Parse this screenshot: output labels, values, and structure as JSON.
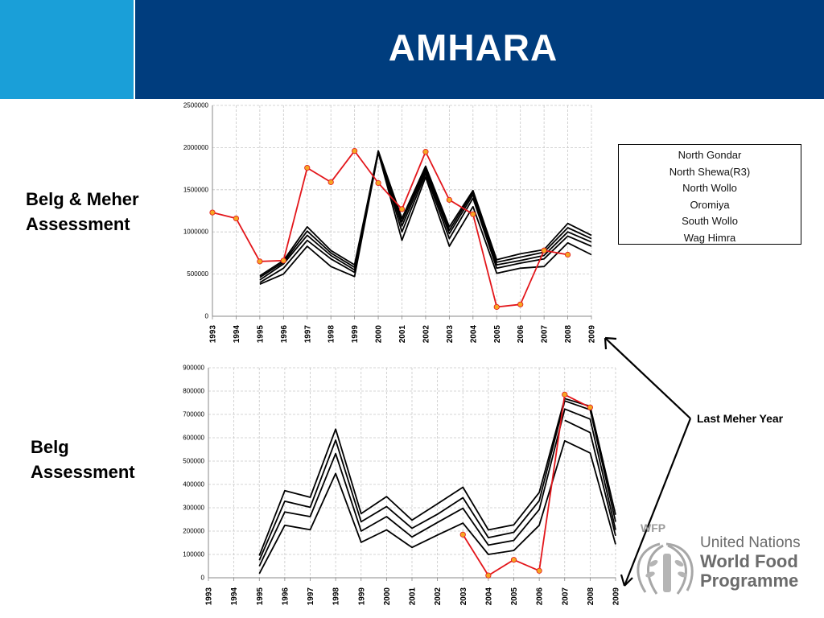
{
  "slide": {
    "title": "AMHARA",
    "label_top": [
      "Belg & Meher",
      "Assessment"
    ],
    "label_bottom": [
      "Belg",
      "Assessment"
    ],
    "annotation": "Last Meher Year",
    "legend": [
      "North Gondar",
      "North Shewa(R3)",
      "North Wollo",
      "Oromiya",
      "South Wollo",
      "Wag Himra"
    ],
    "logo": {
      "tag": "WFP",
      "line1": "United Nations",
      "line2": "World Food",
      "line3": "Programme"
    },
    "colors": {
      "header_light": "#1a9fd8",
      "header_dark": "#003d7e",
      "assessment_line": "#e3161b",
      "marker_fill": "#f6a623",
      "series_line": "#000000"
    }
  },
  "chart_data": [
    {
      "type": "line",
      "x": [
        1993,
        1994,
        1995,
        1996,
        1997,
        1998,
        1999,
        2000,
        2001,
        2002,
        2003,
        2004,
        2005,
        2006,
        2007,
        2008,
        2009
      ],
      "y_ticks": [
        0,
        500000,
        1000000,
        1500000,
        2000000,
        2500000
      ],
      "ylim": [
        0,
        2500000
      ],
      "series": [
        {
          "values": [
            null,
            null,
            480000,
            660000,
            1060000,
            780000,
            610000,
            1960000,
            1160000,
            1780000,
            1060000,
            1490000,
            670000,
            740000,
            790000,
            1100000,
            960000
          ]
        },
        {
          "values": [
            null,
            null,
            460000,
            640000,
            1010000,
            750000,
            580000,
            1960000,
            1120000,
            1750000,
            1020000,
            1470000,
            640000,
            700000,
            760000,
            1050000,
            920000
          ]
        },
        {
          "values": [
            null,
            null,
            430000,
            620000,
            960000,
            720000,
            550000,
            1950000,
            1070000,
            1720000,
            980000,
            1440000,
            610000,
            660000,
            720000,
            1000000,
            880000
          ]
        },
        {
          "values": [
            null,
            null,
            400000,
            570000,
            900000,
            680000,
            520000,
            1950000,
            1000000,
            1690000,
            920000,
            1400000,
            570000,
            630000,
            680000,
            950000,
            830000
          ]
        },
        {
          "values": [
            null,
            null,
            380000,
            500000,
            830000,
            590000,
            470000,
            1940000,
            900000,
            1650000,
            830000,
            1300000,
            510000,
            570000,
            590000,
            870000,
            730000
          ]
        },
        {
          "values": [
            1230000,
            1160000,
            650000,
            660000,
            1760000,
            1590000,
            1960000,
            1580000,
            1270000,
            1950000,
            1380000,
            1210000,
            110000,
            140000,
            780000,
            730000,
            null
          ]
        }
      ]
    },
    {
      "type": "line",
      "x": [
        1993,
        1994,
        1995,
        1996,
        1997,
        1998,
        1999,
        2000,
        2001,
        2002,
        2003,
        2004,
        2005,
        2006,
        2007,
        2008,
        2009
      ],
      "y_ticks": [
        0,
        100000,
        200000,
        300000,
        400000,
        500000,
        600000,
        700000,
        800000,
        900000
      ],
      "ylim": [
        0,
        900000
      ],
      "series": [
        {
          "values": [
            null,
            null,
            95000,
            373000,
            345000,
            637000,
            275000,
            348000,
            247000,
            317000,
            388000,
            205000,
            227000,
            365000,
            768000,
            735000,
            270000
          ]
        },
        {
          "values": [
            null,
            null,
            75000,
            328000,
            302000,
            590000,
            240000,
            305000,
            212000,
            272000,
            343000,
            172000,
            195000,
            330000,
            758000,
            720000,
            240000
          ]
        },
        {
          "values": [
            null,
            null,
            50000,
            282000,
            262000,
            532000,
            200000,
            262000,
            175000,
            237000,
            298000,
            140000,
            160000,
            292000,
            723000,
            680000,
            205000
          ]
        },
        {
          "values": [
            null,
            null,
            18000,
            225000,
            206000,
            447000,
            152000,
            205000,
            130000,
            183000,
            234000,
            100000,
            117000,
            225000,
            587000,
            535000,
            143000
          ]
        },
        {
          "values": [
            null,
            null,
            null,
            null,
            null,
            null,
            null,
            null,
            null,
            null,
            null,
            null,
            null,
            null,
            675000,
            622000,
            180000
          ]
        },
        {
          "values": [
            null,
            null,
            null,
            null,
            null,
            null,
            null,
            null,
            null,
            null,
            185000,
            10000,
            77000,
            30000,
            785000,
            730000,
            null
          ]
        }
      ]
    }
  ]
}
